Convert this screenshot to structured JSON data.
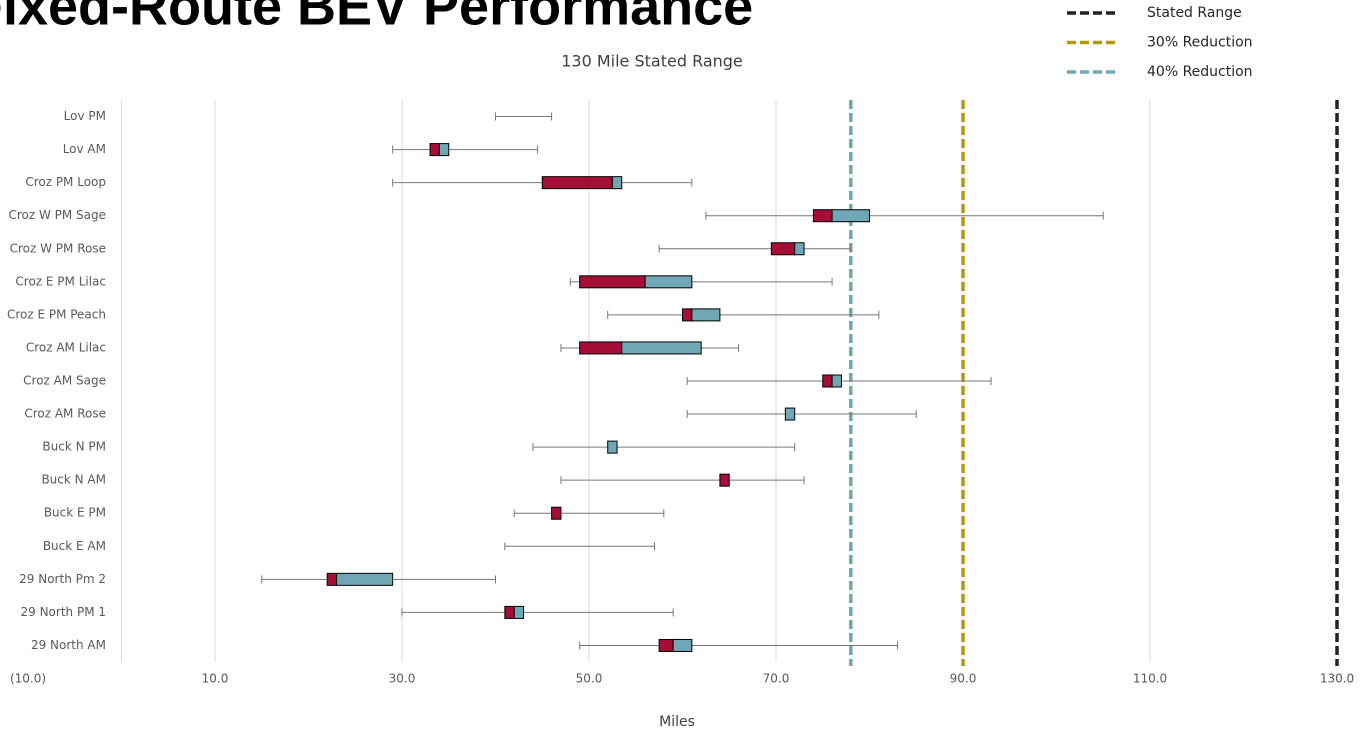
{
  "chart_data": {
    "type": "box",
    "title": "Fixed-Route BEV Performance",
    "subtitle": "130 Mile Stated Range",
    "x_label": "Miles",
    "categories": [
      "Lov PM",
      "Lov AM",
      "Croz PM Loop",
      "Croz W PM Sage",
      "Croz W PM Rose",
      "Croz E PM Lilac",
      "Croz E PM Peach",
      "Croz AM Lilac",
      "Croz AM Sage",
      "Croz AM Rose",
      "Buck N PM",
      "Buck N AM",
      "Buck E PM",
      "Buck E AM",
      "29 North Pm 2",
      "29 North PM 1",
      "29 North AM"
    ],
    "min": [
      40,
      29,
      29,
      62.5,
      57.5,
      48,
      52,
      47,
      60.5,
      60.5,
      44,
      47,
      42,
      41,
      15,
      30,
      49
    ],
    "q1": [
      null,
      33,
      45,
      74,
      69.5,
      49,
      60,
      49,
      75,
      71,
      52,
      64,
      46,
      null,
      22,
      41,
      57.5
    ],
    "median": [
      null,
      34,
      52.5,
      76,
      72,
      56,
      61,
      53.5,
      76,
      71,
      52,
      65,
      47,
      null,
      23,
      42,
      59
    ],
    "q3": [
      null,
      35,
      53.5,
      80,
      73,
      61,
      64,
      62,
      77,
      72,
      53,
      65,
      47,
      null,
      29,
      43,
      61
    ],
    "max": [
      46,
      44.5,
      61,
      105,
      78,
      76,
      81,
      66,
      93,
      85,
      72,
      73,
      58,
      57,
      40,
      59,
      83
    ],
    "lower_color": "#a50e36",
    "upper_color": "#6fa8b4",
    "whisker_color": "#777777",
    "xlim": [
      -10,
      130
    ],
    "xticks": [
      {
        "value": -10,
        "label": "(10.0)"
      },
      {
        "value": 10,
        "label": "10.0"
      },
      {
        "value": 30,
        "label": "30.0"
      },
      {
        "value": 50,
        "label": "50.0"
      },
      {
        "value": 70,
        "label": "70.0"
      },
      {
        "value": 90,
        "label": "90.0"
      },
      {
        "value": 110,
        "label": "110.0"
      },
      {
        "value": 130,
        "label": "130.0"
      }
    ],
    "grid": true,
    "reference_lines": [
      {
        "name": "Stated Range",
        "value": 130,
        "color": "#222222"
      },
      {
        "name": "30% Reduction",
        "value": 90,
        "color": "#b29a0c"
      },
      {
        "name": "40% Reduction",
        "value": 78,
        "color": "#6fa8b4"
      }
    ],
    "legend": "top-right"
  }
}
